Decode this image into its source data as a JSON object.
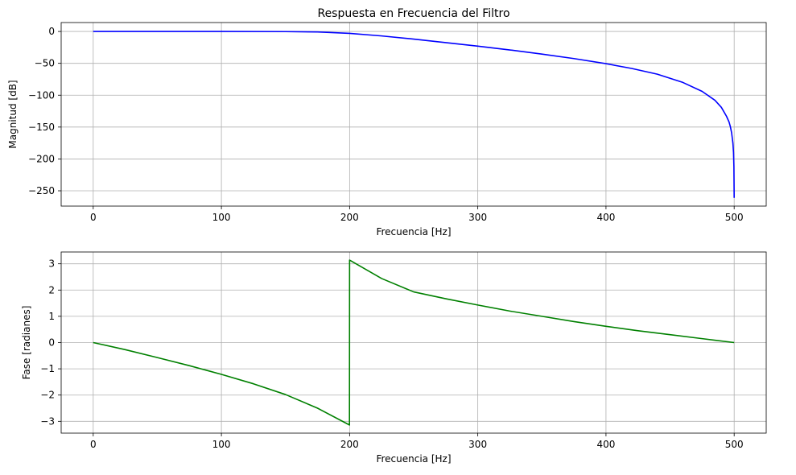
{
  "chart_data": [
    {
      "type": "line",
      "title": "Respuesta en Frecuencia del Filtro",
      "xlabel": "Frecuencia [Hz]",
      "ylabel": "Magnitud [dB]",
      "xlim": [
        -25,
        525
      ],
      "ylim": [
        -274,
        14
      ],
      "grid": true,
      "xticks": [
        0,
        100,
        200,
        300,
        400,
        500
      ],
      "xtick_labels": [
        "0",
        "100",
        "200",
        "300",
        "400",
        "500"
      ],
      "yticks": [
        0,
        -50,
        -100,
        -150,
        -200,
        -250
      ],
      "ytick_labels": [
        "0",
        "−50",
        "−100",
        "−150",
        "−200",
        "−250"
      ],
      "series": [
        {
          "color": "#0000ff",
          "x": [
            0,
            50,
            100,
            150,
            175,
            200,
            225,
            250,
            275,
            300,
            325,
            350,
            375,
            400,
            420,
            440,
            460,
            475,
            485,
            490,
            494,
            496,
            497,
            498,
            499,
            499.5,
            499.8,
            500
          ],
          "y": [
            0,
            0,
            0,
            -0.2,
            -0.8,
            -3,
            -7,
            -12,
            -17.5,
            -23,
            -29,
            -35.5,
            -42.5,
            -50.5,
            -58,
            -67,
            -80,
            -94,
            -108,
            -119,
            -133,
            -142,
            -149,
            -159,
            -175,
            -190,
            -212,
            -261
          ]
        }
      ]
    },
    {
      "type": "line",
      "xlabel": "Frecuencia [Hz]",
      "ylabel": "Fase [radianes]",
      "xlim": [
        -25,
        525
      ],
      "ylim": [
        -3.45,
        3.45
      ],
      "grid": true,
      "xticks": [
        0,
        100,
        200,
        300,
        400,
        500
      ],
      "xtick_labels": [
        "0",
        "100",
        "200",
        "300",
        "400",
        "500"
      ],
      "yticks": [
        3,
        2,
        1,
        0,
        -1,
        -2,
        -3
      ],
      "ytick_labels": [
        "3",
        "2",
        "1",
        "0",
        "−1",
        "−2",
        "−3"
      ],
      "series": [
        {
          "color": "#008000",
          "x": [
            0,
            25,
            50,
            75,
            100,
            125,
            150,
            175,
            199.9,
            200,
            225,
            250,
            275,
            300,
            325,
            350,
            375,
            400,
            425,
            450,
            475,
            500
          ],
          "y": [
            0,
            -0.27,
            -0.57,
            -0.88,
            -1.21,
            -1.57,
            -1.98,
            -2.5,
            -3.14,
            3.14,
            2.44,
            1.93,
            1.67,
            1.43,
            1.2,
            1.0,
            0.8,
            0.62,
            0.45,
            0.3,
            0.15,
            0.0
          ]
        }
      ]
    }
  ]
}
